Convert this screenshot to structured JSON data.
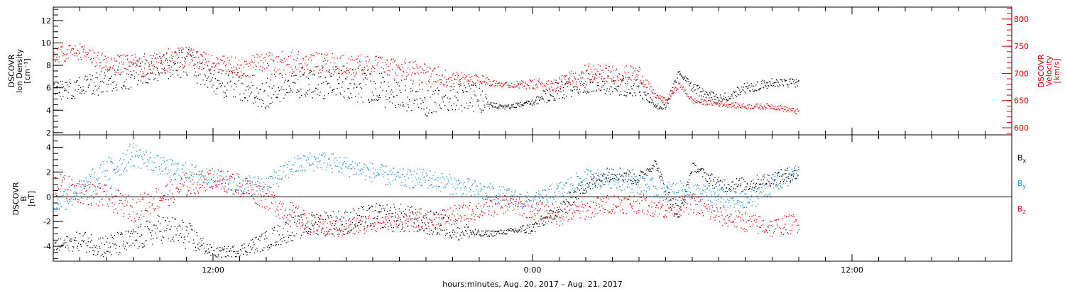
{
  "xaxis": {
    "label": "hours:minutes, Aug. 20, 2017 – Aug. 21, 2017",
    "start": "2017-08-20 06:00",
    "end": "2017-08-21 18:00",
    "major_tick_labels": [
      "12:00",
      "0:00",
      "12:00"
    ],
    "major_tick_hours": [
      12,
      24,
      36
    ],
    "minor_tick_interval_hours": 1
  },
  "colors": {
    "black": "#000000",
    "red": "#e00000",
    "blue": "#1f8ee0"
  },
  "chart_data": [
    {
      "type": "scatter",
      "panel": "top",
      "left_axis": {
        "label_lines": [
          "DSCOVR",
          "Ion Density",
          "[cm⁻³]"
        ],
        "ylim": [
          1.8,
          13.2
        ],
        "ticks": [
          2,
          4,
          6,
          8,
          10,
          12
        ],
        "color": "#000000"
      },
      "right_axis": {
        "label_lines": [
          "DSCOVR",
          "Velocity",
          "[km/s]"
        ],
        "ylim": [
          587,
          822
        ],
        "ticks": [
          600,
          650,
          700,
          750,
          800
        ],
        "color": "#e00000"
      },
      "series": [
        {
          "key": "density",
          "axis": "left",
          "color": "#000000",
          "x_hours": [
            6,
            7,
            8,
            9,
            10,
            11,
            12,
            13,
            14,
            15,
            16,
            17,
            18,
            19,
            20,
            21,
            22,
            22.5,
            23,
            24,
            25,
            26,
            27,
            28,
            28.6,
            29,
            29.5,
            30,
            31,
            32,
            33,
            34
          ],
          "y": [
            5.5,
            6,
            6.5,
            7.5,
            8,
            8.5,
            6.5,
            6,
            5.5,
            6.5,
            6.5,
            6.5,
            6,
            5.5,
            5,
            5.5,
            5,
            4.5,
            4.3,
            4.7,
            6,
            6.5,
            6.2,
            6,
            4.3,
            4.5,
            7.5,
            6,
            5,
            6,
            6.5,
            6.5
          ],
          "spread": [
            1,
            1,
            1.2,
            1.5,
            1.3,
            1.5,
            1.2,
            1.5,
            1.5,
            1.3,
            1.5,
            1.5,
            1.6,
            1.5,
            1.6,
            1.5,
            1.2,
            0.3,
            0.2,
            0.3,
            1,
            1,
            0.8,
            0.8,
            0.2,
            0.4,
            0.3,
            0.5,
            0.4,
            0.5,
            0.4,
            0.4
          ]
        },
        {
          "key": "velocity",
          "axis": "right",
          "color": "#e00000",
          "x_hours": [
            6,
            7,
            8,
            9,
            10,
            11,
            12,
            13,
            14,
            15,
            16,
            17,
            18,
            19,
            20,
            21,
            22,
            23,
            24,
            25,
            26,
            27,
            28,
            28.6,
            29,
            29.5,
            30,
            31,
            32,
            33,
            34
          ],
          "y": [
            735,
            740,
            720,
            715,
            720,
            730,
            720,
            710,
            720,
            720,
            720,
            715,
            715,
            710,
            700,
            690,
            690,
            680,
            680,
            680,
            700,
            700,
            700,
            660,
            650,
            680,
            650,
            645,
            640,
            640,
            630
          ],
          "spread": [
            15,
            15,
            15,
            20,
            25,
            20,
            15,
            20,
            20,
            25,
            20,
            20,
            20,
            20,
            20,
            15,
            10,
            5,
            10,
            15,
            20,
            15,
            15,
            5,
            5,
            5,
            5,
            5,
            5,
            5,
            5
          ]
        }
      ]
    },
    {
      "type": "scatter",
      "panel": "bottom",
      "left_axis": {
        "label_lines": [
          "DSCOVR",
          "B",
          "[nT]"
        ],
        "ylim": [
          -5.2,
          5
        ],
        "ticks": [
          -4,
          -2,
          0,
          2,
          4
        ],
        "color": "#000000"
      },
      "zero_line": true,
      "legend": [
        {
          "text": "B",
          "sub": "x",
          "color": "#000000"
        },
        {
          "text": "B",
          "sub": "y",
          "color": "#1f8ee0"
        },
        {
          "text": "B",
          "sub": "z",
          "color": "#e00000"
        }
      ],
      "series": [
        {
          "key": "bx",
          "color": "#000000",
          "x_hours": [
            6,
            7,
            8,
            9,
            10,
            11,
            12,
            13,
            14,
            15,
            16,
            17,
            18,
            19,
            20,
            21,
            22,
            23,
            24,
            25,
            26,
            27,
            28,
            28.6,
            29,
            29.5,
            30,
            31,
            32,
            33,
            34
          ],
          "y": [
            -4,
            -3.5,
            -4,
            -3.5,
            -2.5,
            -3,
            -4.5,
            -4.3,
            -3.5,
            -2.5,
            -2,
            -2,
            -1.5,
            -1.5,
            -2,
            -2.5,
            -3,
            -2.8,
            -2.5,
            -1,
            1,
            2,
            1.5,
            2.8,
            0.5,
            -1.5,
            2.5,
            1,
            1,
            1.5,
            2
          ],
          "spread": [
            0.5,
            0.8,
            1,
            1,
            1.2,
            1.2,
            0.4,
            0.5,
            0.8,
            1,
            1,
            1,
            1,
            1,
            1,
            1,
            0.3,
            0.2,
            0.5,
            0.5,
            0.7,
            0.6,
            0.6,
            0.3,
            0.6,
            0.6,
            0.3,
            0.6,
            0.6,
            0.6,
            0.6
          ]
        },
        {
          "key": "by",
          "color": "#1f8ee0",
          "x_hours": [
            6,
            7,
            8,
            9,
            10,
            11,
            12,
            13,
            14,
            15,
            16,
            17,
            18,
            19,
            20,
            21,
            22,
            23,
            24,
            25,
            26,
            27,
            28,
            29,
            30,
            31,
            32,
            33,
            34
          ],
          "y": [
            -0.5,
            0.5,
            2,
            3.5,
            2.5,
            2,
            1.5,
            1,
            1,
            2.5,
            3,
            2.5,
            2,
            1.5,
            1.5,
            1,
            0.5,
            0,
            -0.5,
            0.5,
            1.5,
            1.5,
            1,
            0.5,
            0.5,
            0,
            -0.5,
            1,
            2
          ],
          "spread": [
            1,
            1,
            1.2,
            1,
            0.8,
            0.8,
            0.8,
            0.8,
            0.8,
            0.8,
            0.8,
            0.8,
            0.8,
            0.8,
            0.8,
            0.8,
            0.8,
            0.8,
            0.8,
            0.8,
            0.8,
            0.8,
            0.8,
            0.8,
            0.8,
            0.8,
            0.8,
            0.8,
            0.8
          ]
        },
        {
          "key": "bz",
          "color": "#e00000",
          "x_hours": [
            6,
            7,
            8,
            9,
            10,
            11,
            12,
            13,
            14,
            15,
            16,
            17,
            18,
            19,
            20,
            21,
            22,
            23,
            24,
            25,
            26,
            27,
            28,
            29,
            30,
            31,
            32,
            33,
            34
          ],
          "y": [
            1,
            0.5,
            0,
            -1,
            0,
            1,
            1.5,
            1,
            0,
            -1.5,
            -2.5,
            -2.5,
            -2,
            -2,
            -2,
            -1.5,
            -1,
            -0.5,
            -1,
            -1.5,
            -1,
            -0.5,
            -0.5,
            -1,
            -0.5,
            -1.5,
            -2,
            -2.5,
            -2
          ],
          "spread": [
            1,
            1,
            1,
            1,
            1,
            1,
            0.8,
            1,
            1,
            1,
            0.8,
            0.8,
            0.8,
            0.8,
            0.8,
            0.8,
            0.8,
            0.8,
            0.8,
            0.8,
            0.8,
            0.8,
            0.8,
            0.8,
            0.8,
            0.8,
            0.8,
            0.8,
            0.8
          ]
        }
      ]
    }
  ]
}
